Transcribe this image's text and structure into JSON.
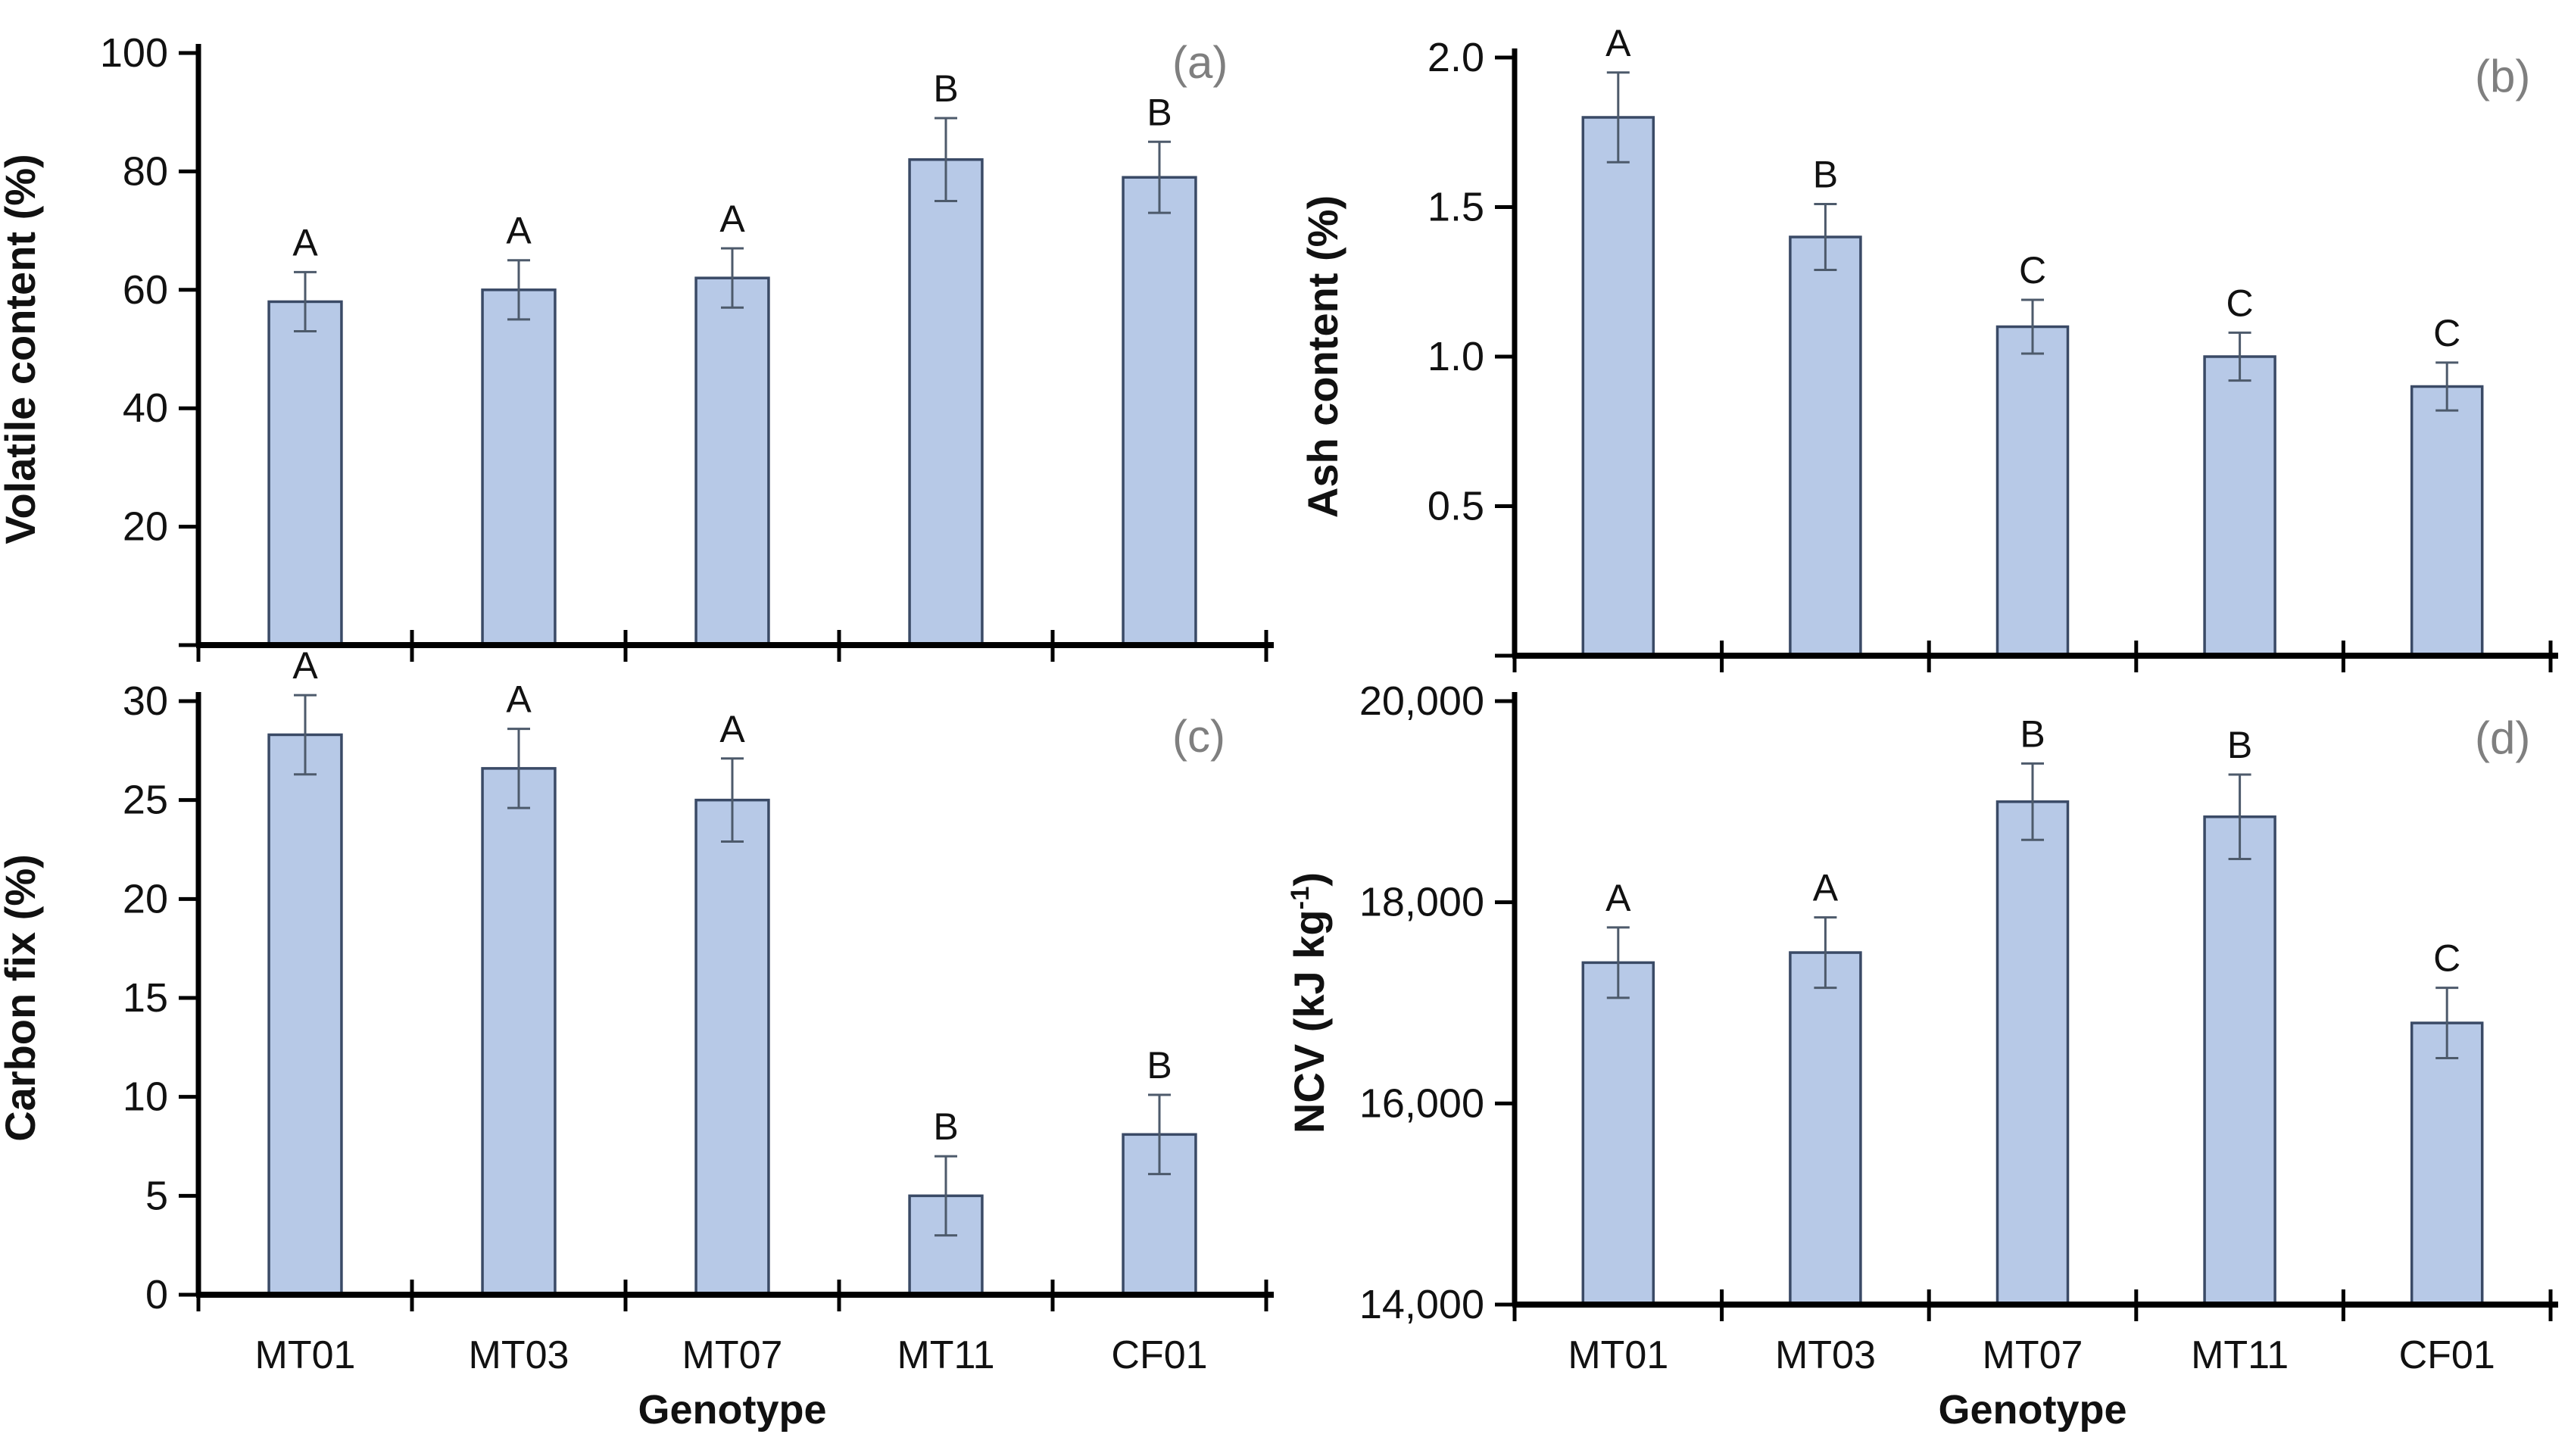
{
  "figure": {
    "background": "#ffffff",
    "xlabel": "Genotype",
    "categories": [
      "MT01",
      "MT03",
      "MT07",
      "MT11",
      "CF01"
    ]
  },
  "colors": {
    "bar_fill": "#b7c9e7",
    "bar_border": "#3a4a66",
    "error_bar": "#4d5a6b",
    "axis": "#000000",
    "text": "#111111",
    "panel_label": "#7f7f7f"
  },
  "chart_data": [
    {
      "type": "bar",
      "panel_label": "(a)",
      "ylabel": "Volatile content (%)",
      "xlabel": "",
      "categories": [
        "MT01",
        "MT03",
        "MT07",
        "MT11",
        "CF01"
      ],
      "values": [
        58,
        60,
        62,
        82,
        79
      ],
      "errors": [
        5,
        5,
        5,
        7,
        6
      ],
      "sig_letters": [
        "A",
        "A",
        "A",
        "B",
        "B"
      ],
      "ylim": [
        0,
        100
      ],
      "yticks": [
        {
          "v": 0,
          "label": ""
        },
        {
          "v": 20,
          "label": "20"
        },
        {
          "v": 40,
          "label": "40"
        },
        {
          "v": 60,
          "label": "60"
        },
        {
          "v": 80,
          "label": "80"
        },
        {
          "v": 100,
          "label": "100"
        }
      ],
      "show_x_labels": false,
      "grid": "off",
      "legend": "none"
    },
    {
      "type": "bar",
      "panel_label": "(b)",
      "ylabel": "Ash content (%)",
      "xlabel": "",
      "categories": [
        "MT01",
        "MT03",
        "MT07",
        "MT11",
        "CF01"
      ],
      "values": [
        1.8,
        1.4,
        1.1,
        1.0,
        0.9
      ],
      "errors": [
        0.15,
        0.11,
        0.09,
        0.08,
        0.08
      ],
      "sig_letters": [
        "A",
        "B",
        "C",
        "C",
        "C"
      ],
      "ylim": [
        0,
        2.0
      ],
      "yticks": [
        {
          "v": 0,
          "label": ""
        },
        {
          "v": 0.5,
          "label": "0.5"
        },
        {
          "v": 1.0,
          "label": "1.0"
        },
        {
          "v": 1.5,
          "label": "1.5"
        },
        {
          "v": 2.0,
          "label": "2.0"
        }
      ],
      "show_x_labels": false,
      "grid": "off",
      "legend": "none"
    },
    {
      "type": "bar",
      "panel_label": "(c)",
      "ylabel": "Carbon fix (%)",
      "xlabel": "Genotype",
      "categories": [
        "MT01",
        "MT03",
        "MT07",
        "MT11",
        "CF01"
      ],
      "values": [
        28.3,
        26.6,
        25.0,
        5.0,
        8.1
      ],
      "errors": [
        2,
        2,
        2.1,
        2,
        2
      ],
      "sig_letters": [
        "A",
        "A",
        "A",
        "B",
        "B"
      ],
      "ylim": [
        0,
        30
      ],
      "yticks": [
        {
          "v": 0,
          "label": "0"
        },
        {
          "v": 5,
          "label": "5"
        },
        {
          "v": 10,
          "label": "10"
        },
        {
          "v": 15,
          "label": "15"
        },
        {
          "v": 20,
          "label": "20"
        },
        {
          "v": 25,
          "label": "25"
        },
        {
          "v": 30,
          "label": "30"
        }
      ],
      "show_x_labels": true,
      "grid": "off",
      "legend": "none"
    },
    {
      "type": "bar",
      "panel_label": "(d)",
      "ylabel": "NCV (kJ kg⁻¹)",
      "ylabel_parts": {
        "pre": "NCV (kJ kg",
        "sup": "-1",
        "post": ")"
      },
      "xlabel": "Genotype",
      "categories": [
        "MT01",
        "MT03",
        "MT07",
        "MT11",
        "CF01"
      ],
      "values": [
        17400,
        17500,
        19000,
        18850,
        16800
      ],
      "errors": [
        350,
        350,
        380,
        420,
        350
      ],
      "sig_letters": [
        "A",
        "A",
        "B",
        "B",
        "C"
      ],
      "ylim": [
        14000,
        20000
      ],
      "yticks": [
        {
          "v": 14000,
          "label": "14,000"
        },
        {
          "v": 16000,
          "label": "16,000"
        },
        {
          "v": 18000,
          "label": "18,000"
        },
        {
          "v": 20000,
          "label": "20,000"
        }
      ],
      "show_x_labels": true,
      "grid": "off",
      "legend": "none"
    }
  ]
}
